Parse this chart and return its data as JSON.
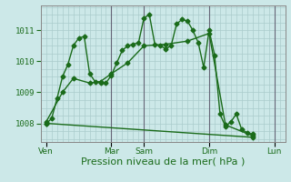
{
  "background_color": "#cce8e8",
  "grid_color": "#aacccc",
  "line_color": "#1a6b1a",
  "marker": "D",
  "markersize": 2.5,
  "linewidth": 1.0,
  "xlabel": "Pression niveau de la mer( hPa )",
  "xlabel_fontsize": 8,
  "yticks": [
    1008,
    1009,
    1010,
    1011
  ],
  "ylim": [
    1007.4,
    1011.8
  ],
  "xtick_labels": [
    "Ven",
    "",
    "Mar",
    "Sam",
    "",
    "Dim",
    "",
    "Lun"
  ],
  "xtick_positions": [
    0,
    6,
    12,
    18,
    24,
    30,
    36,
    42
  ],
  "xlim": [
    -1,
    44
  ],
  "vlines_dark": [
    12,
    18,
    30,
    42
  ],
  "vlines_light": [
    6,
    24,
    36
  ],
  "vline_dark_color": "#666677",
  "vline_light_color": "#99aabb",
  "series1": [
    [
      0,
      1008.0
    ],
    [
      1,
      1008.15
    ],
    [
      2,
      1008.8
    ],
    [
      3,
      1009.5
    ],
    [
      4,
      1009.9
    ],
    [
      5,
      1010.5
    ],
    [
      6,
      1010.75
    ],
    [
      7,
      1010.8
    ],
    [
      8,
      1009.6
    ],
    [
      9,
      1009.35
    ],
    [
      10,
      1009.3
    ],
    [
      11,
      1009.3
    ],
    [
      12,
      1009.55
    ],
    [
      13,
      1009.95
    ],
    [
      14,
      1010.35
    ],
    [
      15,
      1010.5
    ],
    [
      16,
      1010.55
    ],
    [
      17,
      1010.6
    ],
    [
      18,
      1011.4
    ],
    [
      19,
      1011.5
    ],
    [
      20,
      1010.55
    ],
    [
      21,
      1010.5
    ],
    [
      22,
      1010.4
    ],
    [
      23,
      1010.5
    ],
    [
      24,
      1011.2
    ],
    [
      25,
      1011.35
    ],
    [
      26,
      1011.3
    ],
    [
      27,
      1011.0
    ],
    [
      28,
      1010.6
    ],
    [
      29,
      1009.8
    ],
    [
      30,
      1011.0
    ],
    [
      31,
      1010.2
    ],
    [
      32,
      1008.3
    ],
    [
      33,
      1007.9
    ],
    [
      34,
      1008.05
    ],
    [
      35,
      1008.3
    ],
    [
      36,
      1007.8
    ],
    [
      37,
      1007.7
    ],
    [
      38,
      1007.65
    ]
  ],
  "series2": [
    [
      0,
      1008.0
    ],
    [
      38,
      1007.55
    ]
  ],
  "series3": [
    [
      0,
      1008.05
    ],
    [
      3,
      1009.0
    ],
    [
      5,
      1009.45
    ],
    [
      8,
      1009.3
    ],
    [
      10,
      1009.35
    ],
    [
      12,
      1009.6
    ],
    [
      15,
      1009.95
    ],
    [
      18,
      1010.5
    ],
    [
      22,
      1010.55
    ],
    [
      26,
      1010.65
    ],
    [
      30,
      1010.9
    ],
    [
      33,
      1007.95
    ],
    [
      38,
      1007.6
    ]
  ]
}
